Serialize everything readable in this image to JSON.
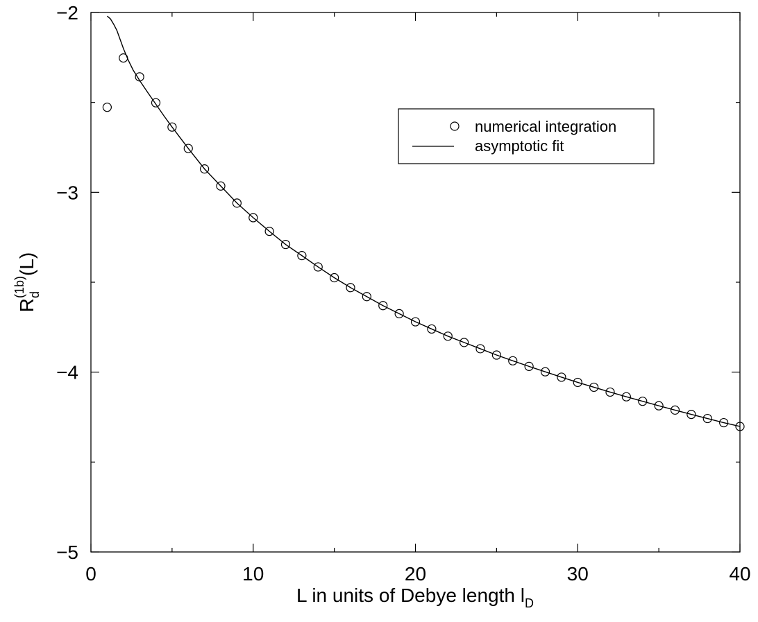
{
  "chart_data": {
    "type": "scatter",
    "xlabel": {
      "main": "L in units of Debye length l",
      "sub": "D"
    },
    "ylabel": {
      "main": "R",
      "sub": "d",
      "sup": "(1b)",
      "tail": "(L)"
    },
    "xlim": [
      0,
      40
    ],
    "ylim": [
      -5,
      -2
    ],
    "x_ticks": [
      0,
      10,
      20,
      30,
      40
    ],
    "x_tick_labels": [
      "0",
      "10",
      "20",
      "30",
      "40"
    ],
    "y_ticks": [
      -5,
      -4,
      -3,
      -2
    ],
    "y_tick_labels": [
      "−5",
      "−4",
      "−3",
      "−2"
    ],
    "legend_position": "upper-right",
    "series": [
      {
        "name": "numerical integration",
        "style": "open-circle",
        "x": [
          1,
          2,
          3,
          4,
          5,
          6,
          7,
          8,
          9,
          10,
          11,
          12,
          13,
          14,
          15,
          16,
          17,
          18,
          19,
          20,
          21,
          22,
          23,
          24,
          25,
          26,
          27,
          28,
          29,
          30,
          31,
          32,
          33,
          34,
          35,
          36,
          37,
          38,
          39,
          40
        ],
        "y": [
          -2.527,
          -2.253,
          -2.358,
          -2.502,
          -2.637,
          -2.756,
          -2.87,
          -2.965,
          -3.06,
          -3.141,
          -3.217,
          -3.29,
          -3.352,
          -3.415,
          -3.475,
          -3.53,
          -3.58,
          -3.63,
          -3.675,
          -3.72,
          -3.76,
          -3.8,
          -3.835,
          -3.87,
          -3.905,
          -3.937,
          -3.968,
          -3.998,
          -4.028,
          -4.057,
          -4.084,
          -4.111,
          -4.137,
          -4.162,
          -4.187,
          -4.211,
          -4.235,
          -4.258,
          -4.281,
          -4.302
        ]
      },
      {
        "name": "asymptotic fit",
        "style": "line",
        "x": [
          1.0,
          1.2,
          1.4,
          1.6,
          1.8,
          2.0,
          2.3,
          2.6,
          3.0,
          3.5,
          4.0,
          4.5,
          5,
          6,
          7,
          8,
          9,
          10,
          11,
          12,
          13,
          14,
          15,
          16,
          17,
          18,
          19,
          20,
          21,
          22,
          23,
          24,
          25,
          26,
          27,
          28,
          29,
          30,
          31,
          32,
          33,
          34,
          35,
          36,
          37,
          38,
          39,
          40
        ],
        "y": [
          -2.02,
          -2.035,
          -2.065,
          -2.1,
          -2.15,
          -2.2,
          -2.265,
          -2.32,
          -2.378,
          -2.445,
          -2.51,
          -2.575,
          -2.637,
          -2.756,
          -2.87,
          -2.965,
          -3.06,
          -3.141,
          -3.217,
          -3.29,
          -3.352,
          -3.415,
          -3.475,
          -3.53,
          -3.58,
          -3.63,
          -3.675,
          -3.72,
          -3.76,
          -3.8,
          -3.835,
          -3.87,
          -3.905,
          -3.937,
          -3.968,
          -3.998,
          -4.028,
          -4.057,
          -4.084,
          -4.111,
          -4.137,
          -4.162,
          -4.187,
          -4.211,
          -4.235,
          -4.258,
          -4.281,
          -4.302
        ]
      }
    ]
  }
}
